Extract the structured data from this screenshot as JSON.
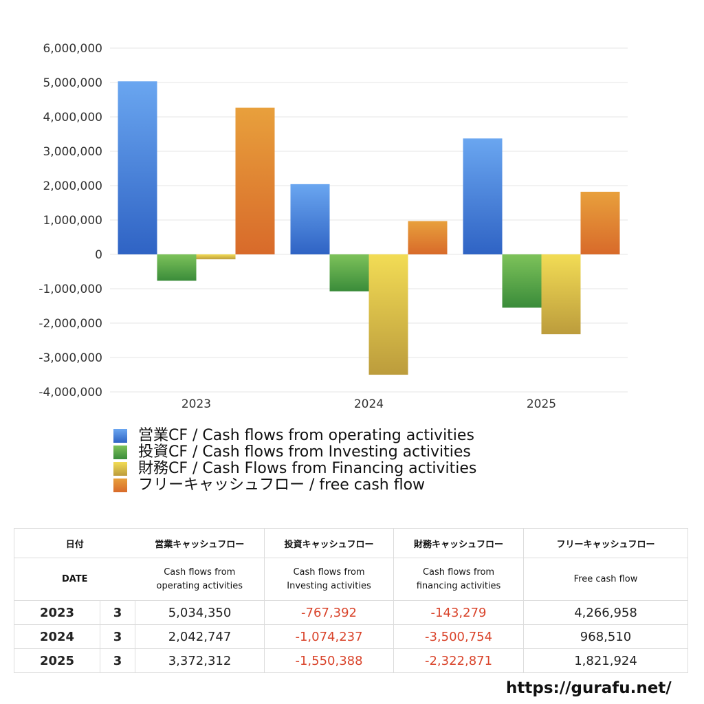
{
  "chart_data": {
    "type": "bar",
    "categories": [
      "2023",
      "2024",
      "2025"
    ],
    "series": [
      {
        "name": "営業CF / Cash flows from operating activities",
        "values": [
          5034350,
          2042747,
          3372312
        ],
        "color_top": "#6aa6f0",
        "color_bottom": "#2f63c4"
      },
      {
        "name": "投資CF / Cash flows from Investing activities",
        "values": [
          -767392,
          -1074237,
          -1550388
        ],
        "color_top": "#7dc25a",
        "color_bottom": "#3a8c3a"
      },
      {
        "name": "財務CF / Cash Flows from Financing activities",
        "values": [
          -143279,
          -3500754,
          -2322871
        ],
        "color_top": "#f2dc55",
        "color_bottom": "#bc9c3c"
      },
      {
        "name": "フリーキャッシュフロー / free cash flow",
        "values": [
          4266958,
          968510,
          1821924
        ],
        "color_top": "#e8a03c",
        "color_bottom": "#d86a2a"
      }
    ],
    "y_ticks": [
      "6,000,000",
      "5,000,000",
      "4,000,000",
      "3,000,000",
      "2,000,000",
      "1,000,000",
      "0",
      "-1,000,000",
      "-2,000,000",
      "-3,000,000",
      "-4,000,000"
    ],
    "ylim": [
      -4000000,
      6000000
    ],
    "grid": true,
    "legend_position": "bottom-left"
  },
  "table": {
    "header_jp": [
      "日付",
      "営業キャッシュフロー",
      "投資キャッシュフロー",
      "財務キャッシュフロー",
      "フリーキャッシュフロー"
    ],
    "header_en": {
      "date": "DATE",
      "operating": [
        "Cash flows from",
        "operating activities"
      ],
      "investing": [
        "Cash flows from",
        "Investing activities"
      ],
      "financing": [
        "Cash flows from",
        "financing activities"
      ],
      "free": "Free cash flow"
    },
    "rows": [
      {
        "year": "2023",
        "month": "3",
        "operating": "5,034,350",
        "investing": "-767,392",
        "financing": "-143,279",
        "free": "4,266,958"
      },
      {
        "year": "2024",
        "month": "3",
        "operating": "2,042,747",
        "investing": "-1,074,237",
        "financing": "-3,500,754",
        "free": "968,510"
      },
      {
        "year": "2025",
        "month": "3",
        "operating": "3,372,312",
        "investing": "-1,550,388",
        "financing": "-2,322,871",
        "free": "1,821,924"
      }
    ],
    "negative_color": "#d9432a"
  },
  "footer": {
    "url": "https://gurafu.net/"
  }
}
